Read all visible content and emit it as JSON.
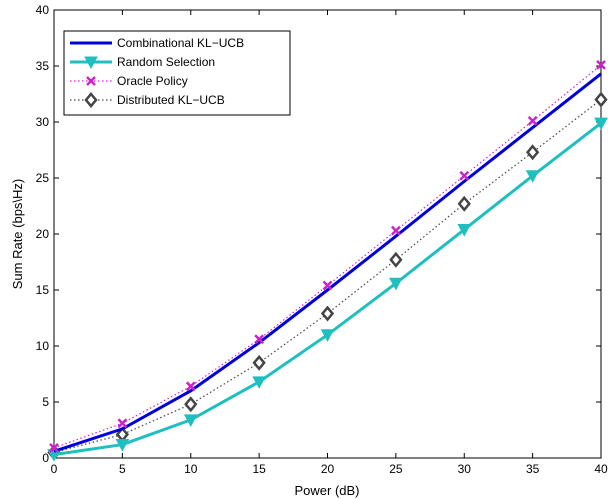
{
  "chart_data": {
    "type": "line",
    "xlabel": "Power (dB)",
    "ylabel": "Sum Rate (bps\\Hz)",
    "xlim": [
      0,
      40
    ],
    "ylim": [
      0,
      40
    ],
    "xticks": [
      0,
      5,
      10,
      15,
      20,
      25,
      30,
      35,
      40
    ],
    "yticks": [
      0,
      5,
      10,
      15,
      20,
      25,
      30,
      35,
      40
    ],
    "grid": false,
    "legend_position": "top-left",
    "x": [
      0,
      5,
      10,
      15,
      20,
      25,
      30,
      35,
      40
    ],
    "series": [
      {
        "name": "Combinational KL−UCB",
        "values": [
          0.6,
          2.6,
          6.0,
          10.3,
          15.0,
          19.8,
          24.7,
          29.5,
          34.3
        ],
        "color": "#0000dd",
        "line": "solid",
        "marker": "none"
      },
      {
        "name": "Random Selection",
        "values": [
          0.3,
          1.2,
          3.4,
          6.8,
          11.0,
          15.6,
          20.4,
          25.2,
          29.9
        ],
        "color": "#1fbfbf",
        "line": "solid",
        "marker": "triangle-down"
      },
      {
        "name": "Oracle Policy",
        "values": [
          0.9,
          3.1,
          6.4,
          10.6,
          15.4,
          20.3,
          25.2,
          30.1,
          35.1
        ],
        "color": "#cc22cc",
        "line": "dotted",
        "marker": "x"
      },
      {
        "name": "Distributed KL−UCB",
        "values": [
          0.5,
          2.1,
          4.8,
          8.5,
          12.9,
          17.7,
          22.7,
          27.3,
          32.0
        ],
        "color": "#444444",
        "line": "dotted",
        "marker": "diamond"
      }
    ]
  }
}
